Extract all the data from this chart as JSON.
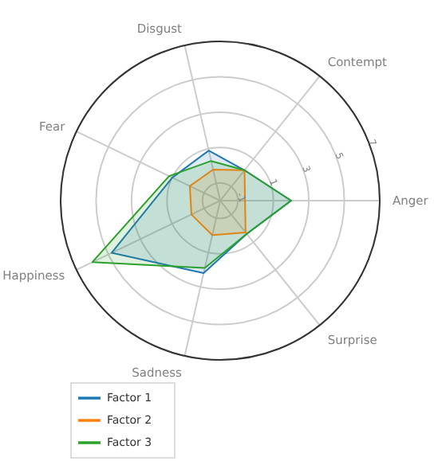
{
  "chart_data": {
    "type": "radar",
    "categories": [
      "Disgust",
      "Contempt",
      "Anger",
      "Surprise",
      "Sadness",
      "Happiness",
      "Fear"
    ],
    "series": [
      {
        "name": "Factor 1",
        "color": "#1f77b4",
        "values": [
          0.9,
          0.2,
          2.0,
          0.4,
          2.2,
          4.8,
          1.0
        ]
      },
      {
        "name": "Factor 2",
        "color": "#ff7f0e",
        "values": [
          -0.2,
          0.2,
          -0.6,
          0.3,
          0.0,
          -0.2,
          -0.1
        ]
      },
      {
        "name": "Factor 3",
        "color": "#2ca02c",
        "values": [
          0.3,
          0.2,
          2.0,
          0.4,
          1.9,
          6.0,
          1.2
        ]
      }
    ],
    "ylim": [
      -2,
      7
    ],
    "yticks": [
      -1,
      1,
      3,
      5,
      7
    ],
    "grid": true,
    "legend": "bottom left"
  }
}
